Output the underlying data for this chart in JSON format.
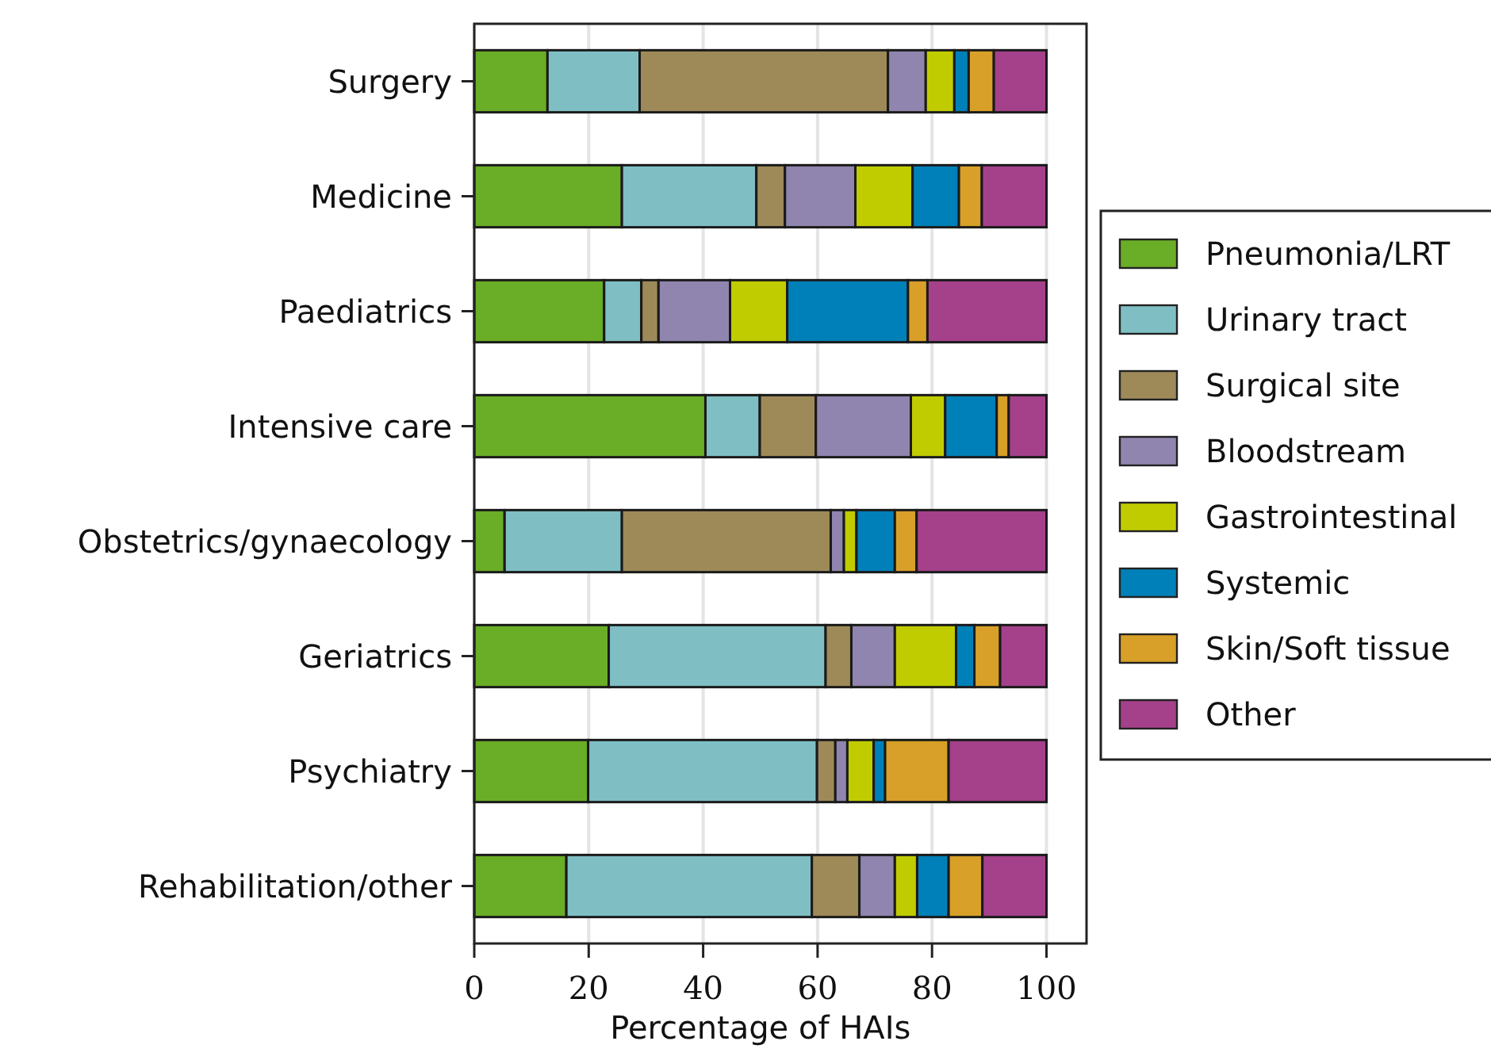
{
  "chart_data": {
    "type": "bar",
    "orientation": "horizontal",
    "stacked": true,
    "xlabel": "Percentage of HAIs",
    "categories": [
      "Surgery",
      "Medicine",
      "Paediatrics",
      "Intensive care",
      "Obstetrics/gynaecology",
      "Geriatrics",
      "Psychiatry",
      "Rehabilitation/other"
    ],
    "series": [
      {
        "name": "Pneumonia/LRT",
        "color": "#6aad26",
        "values": [
          12.8,
          25.8,
          22.7,
          40.4,
          5.3,
          23.5,
          19.9,
          16.1
        ]
      },
      {
        "name": "Urinary tract",
        "color": "#7fbfc4",
        "values": [
          16.1,
          23.5,
          6.5,
          9.5,
          20.5,
          37.9,
          40.0,
          42.9
        ]
      },
      {
        "name": "Surgical site",
        "color": "#9e8a58",
        "values": [
          43.4,
          5.0,
          3.0,
          9.8,
          36.5,
          4.5,
          3.2,
          8.3
        ]
      },
      {
        "name": "Bloodstream",
        "color": "#9085ae",
        "values": [
          6.6,
          12.3,
          12.5,
          16.6,
          2.3,
          7.6,
          2.1,
          6.2
        ]
      },
      {
        "name": "Gastrointestinal",
        "color": "#c0cc00",
        "values": [
          5.0,
          10.0,
          10.0,
          6.0,
          2.2,
          10.7,
          4.6,
          3.9
        ]
      },
      {
        "name": "Systemic",
        "color": "#0080b8",
        "values": [
          2.5,
          8.1,
          21.1,
          9.0,
          6.7,
          3.2,
          2.0,
          5.5
        ]
      },
      {
        "name": "Skin/Soft tissue",
        "color": "#d8a028",
        "values": [
          4.4,
          4.0,
          3.4,
          2.1,
          3.8,
          4.5,
          11.1,
          5.9
        ]
      },
      {
        "name": "Other",
        "color": "#a4418a",
        "values": [
          9.2,
          11.3,
          20.8,
          6.6,
          22.7,
          8.1,
          17.1,
          11.2
        ]
      }
    ],
    "xlim": [
      0,
      107
    ],
    "xticks": [
      0,
      20,
      40,
      60,
      80,
      100
    ],
    "grid": "x",
    "legend": "right"
  }
}
